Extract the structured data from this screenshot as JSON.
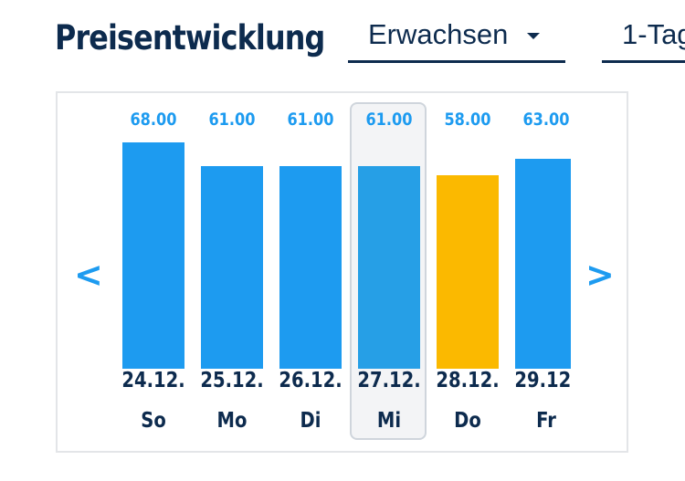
{
  "header": {
    "title": "Preisentwicklung",
    "age_select": {
      "value": "Erwachsen"
    },
    "ticket_select": {
      "value": "1-Tag"
    }
  },
  "navigation": {
    "prev_label": "<",
    "next_label": ">"
  },
  "colors": {
    "bar": "#1d9bf0",
    "bar_selected": "#269fe6",
    "bar_cheapest": "#fbb900",
    "text": "#0d2b4e",
    "price_text": "#1d9bf0"
  },
  "chart_data": {
    "type": "bar",
    "categories": [
      "24.12.",
      "25.12.",
      "26.12.",
      "27.12.",
      "28.12.",
      "29.12."
    ],
    "weekdays": [
      "So",
      "Mo",
      "Di",
      "Mi",
      "Do",
      "Fr"
    ],
    "values": [
      68.0,
      61.0,
      61.0,
      61.0,
      58.0,
      63.0
    ],
    "value_labels": [
      "68.00",
      "61.00",
      "61.00",
      "61.00",
      "58.00",
      "63.00"
    ],
    "selected_index": 3,
    "highlighted_index": 4,
    "title": "",
    "xlabel": "",
    "ylabel": "",
    "grid": false
  }
}
